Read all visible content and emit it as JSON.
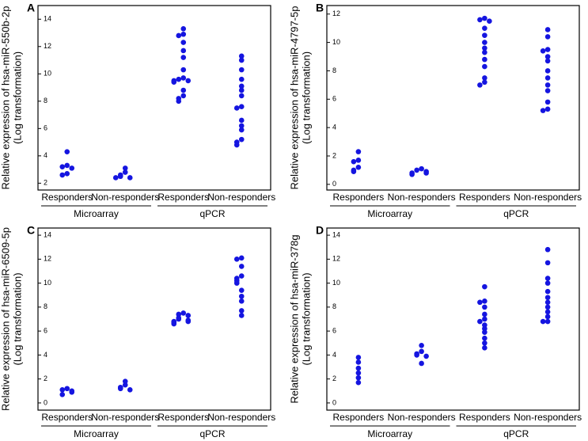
{
  "chart_data": [
    {
      "type": "strip",
      "panel": "A",
      "ylabel": [
        "Relative expression of hsa-miR-550b-2p",
        "(Log transformation)"
      ],
      "categories": [
        "Responders",
        "Non-responders",
        "Responders",
        "Non-responders"
      ],
      "groups": [
        "Microarray",
        "qPCR"
      ],
      "color": "#1515e0",
      "ylim": [
        1.5,
        15
      ],
      "yticks": [
        2,
        4,
        6,
        8,
        10,
        12,
        14
      ],
      "values": [
        [
          4.3,
          3.3,
          3.2,
          3.1,
          2.7,
          2.6
        ],
        [
          3.1,
          2.8,
          2.6,
          2.5,
          2.4,
          2.4
        ],
        [
          13.3,
          12.9,
          12.8,
          12.3,
          11.7,
          11.2,
          10.3,
          9.7,
          9.6,
          9.5,
          9.5,
          9.4,
          8.8,
          8.4,
          8.2,
          8.0
        ],
        [
          11.3,
          11.0,
          10.3,
          9.6,
          9.1,
          8.8,
          8.4,
          7.6,
          7.5,
          6.6,
          6.2,
          5.9,
          5.2,
          5.0,
          4.8
        ]
      ]
    },
    {
      "type": "strip",
      "panel": "B",
      "ylabel": [
        "Relative expression of hsa-miR-4797-5p",
        "(Log transformation)"
      ],
      "categories": [
        "Responders",
        "Non-responders",
        "Responders",
        "Non-responders"
      ],
      "groups": [
        "Microarray",
        "qPCR"
      ],
      "color": "#1515e0",
      "ylim": [
        -0.4,
        12.6
      ],
      "yticks": [
        0,
        2,
        4,
        6,
        8,
        10,
        12
      ],
      "values": [
        [
          2.3,
          1.7,
          1.6,
          1.2,
          1.0,
          0.9
        ],
        [
          1.1,
          1.0,
          0.9,
          0.8,
          0.8,
          0.7
        ],
        [
          11.7,
          11.6,
          11.5,
          11.0,
          10.5,
          10.0,
          9.6,
          9.3,
          8.8,
          8.3,
          7.5,
          7.2,
          7.0
        ],
        [
          10.9,
          10.4,
          9.5,
          9.4,
          9.0,
          8.7,
          8.0,
          7.5,
          7.0,
          6.6,
          5.8,
          5.3,
          5.2
        ]
      ]
    },
    {
      "type": "strip",
      "panel": "C",
      "ylabel": [
        "Relative expression of hsa-miR-6509-5p",
        "(Log transformation)"
      ],
      "categories": [
        "Responders",
        "Non-responders",
        "Responders",
        "Non-responders"
      ],
      "groups": [
        "Microarray",
        "qPCR"
      ],
      "color": "#1515e0",
      "ylim": [
        -0.6,
        14.6
      ],
      "yticks": [
        0,
        2,
        4,
        6,
        8,
        10,
        12,
        14
      ],
      "values": [
        [
          1.2,
          1.1,
          1.0,
          0.9,
          0.7
        ],
        [
          1.8,
          1.5,
          1.3,
          1.2,
          1.1
        ],
        [
          7.5,
          7.4,
          7.3,
          7.1,
          7.0,
          6.9,
          6.8,
          6.8,
          6.7,
          6.6
        ],
        [
          12.1,
          12.0,
          11.4,
          10.6,
          10.4,
          10.2,
          10.0,
          9.4,
          8.9,
          8.5,
          7.7,
          7.3
        ]
      ]
    },
    {
      "type": "strip",
      "panel": "D",
      "ylabel": [
        "Relative expression of hsa-miR-378g",
        "(Log transformation)"
      ],
      "categories": [
        "Responders",
        "Non-responders",
        "Responders",
        "Non-responders"
      ],
      "groups": [
        "Microarray",
        "qPCR"
      ],
      "color": "#1515e0",
      "ylim": [
        -0.6,
        14.6
      ],
      "yticks": [
        0,
        2,
        4,
        6,
        8,
        10,
        12,
        14
      ],
      "values": [
        [
          3.8,
          3.4,
          2.9,
          2.5,
          2.1,
          1.7
        ],
        [
          4.8,
          4.3,
          4.1,
          4.0,
          3.9,
          3.3
        ],
        [
          9.7,
          8.5,
          8.4,
          8.0,
          7.4,
          7.0,
          6.8,
          6.5,
          6.2,
          5.9,
          5.4,
          5.0,
          4.6
        ],
        [
          12.8,
          11.7,
          10.4,
          10.0,
          9.3,
          8.8,
          8.4,
          8.0,
          7.6,
          7.2,
          6.8,
          6.8
        ]
      ]
    }
  ]
}
